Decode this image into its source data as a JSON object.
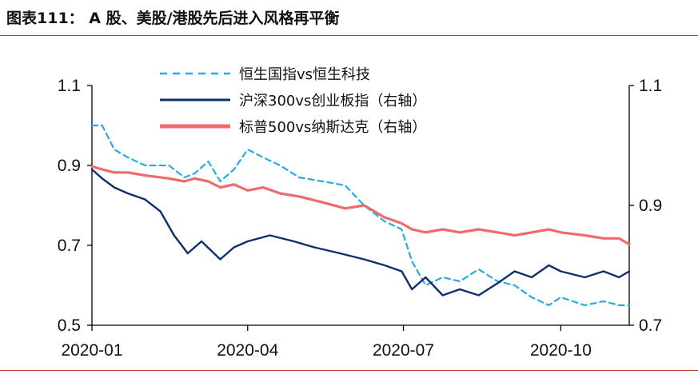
{
  "title": "图表111： A 股、美股/港股先后进入风格再平衡",
  "chart_data": {
    "type": "line",
    "x_tick_labels": [
      "2020-01",
      "2020-04",
      "2020-07",
      "2020-10"
    ],
    "x_ticks": [
      "2020-01-01",
      "2020-04-01",
      "2020-07-01",
      "2020-10-01"
    ],
    "x_range": [
      "2020-01-01",
      "2020-11-10"
    ],
    "y_left": {
      "range": [
        0.5,
        1.1
      ],
      "ticks": [
        "1.1",
        "0.9",
        "0.7",
        "0.5"
      ]
    },
    "y_right": {
      "range": [
        0.7,
        1.1
      ],
      "ticks": [
        "1.1",
        "0.9",
        "0.7"
      ]
    },
    "grid": false,
    "legend": "top",
    "series": [
      {
        "name": "恒生国指vs恒生科技",
        "axis": "left",
        "color": "#29abe2",
        "style": "dashed",
        "points": [
          [
            "2020-01-01",
            1.0
          ],
          [
            "2020-01-07",
            1.0
          ],
          [
            "2020-01-14",
            0.94
          ],
          [
            "2020-01-22",
            0.92
          ],
          [
            "2020-02-01",
            0.9
          ],
          [
            "2020-02-15",
            0.9
          ],
          [
            "2020-02-24",
            0.87
          ],
          [
            "2020-03-01",
            0.88
          ],
          [
            "2020-03-09",
            0.91
          ],
          [
            "2020-03-16",
            0.86
          ],
          [
            "2020-03-24",
            0.89
          ],
          [
            "2020-04-01",
            0.94
          ],
          [
            "2020-04-10",
            0.92
          ],
          [
            "2020-04-20",
            0.9
          ],
          [
            "2020-05-01",
            0.87
          ],
          [
            "2020-05-15",
            0.86
          ],
          [
            "2020-05-28",
            0.85
          ],
          [
            "2020-06-08",
            0.8
          ],
          [
            "2020-06-20",
            0.76
          ],
          [
            "2020-06-30",
            0.74
          ],
          [
            "2020-07-06",
            0.66
          ],
          [
            "2020-07-14",
            0.6
          ],
          [
            "2020-07-24",
            0.62
          ],
          [
            "2020-08-03",
            0.61
          ],
          [
            "2020-08-14",
            0.64
          ],
          [
            "2020-08-25",
            0.61
          ],
          [
            "2020-09-04",
            0.6
          ],
          [
            "2020-09-14",
            0.57
          ],
          [
            "2020-09-24",
            0.55
          ],
          [
            "2020-10-01",
            0.57
          ],
          [
            "2020-10-15",
            0.55
          ],
          [
            "2020-10-26",
            0.56
          ],
          [
            "2020-11-04",
            0.55
          ],
          [
            "2020-11-10",
            0.55
          ]
        ]
      },
      {
        "name": "沪深300vs创业板指（右轴）",
        "axis": "right",
        "color": "#0d2f6e",
        "style": "solid",
        "points": [
          [
            "2020-01-01",
            0.96
          ],
          [
            "2020-01-07",
            0.945
          ],
          [
            "2020-01-14",
            0.93
          ],
          [
            "2020-01-22",
            0.92
          ],
          [
            "2020-02-01",
            0.91
          ],
          [
            "2020-02-10",
            0.89
          ],
          [
            "2020-02-18",
            0.85
          ],
          [
            "2020-02-26",
            0.82
          ],
          [
            "2020-03-05",
            0.84
          ],
          [
            "2020-03-16",
            0.81
          ],
          [
            "2020-03-24",
            0.83
          ],
          [
            "2020-04-01",
            0.84
          ],
          [
            "2020-04-14",
            0.85
          ],
          [
            "2020-04-28",
            0.84
          ],
          [
            "2020-05-10",
            0.83
          ],
          [
            "2020-05-25",
            0.82
          ],
          [
            "2020-06-08",
            0.81
          ],
          [
            "2020-06-20",
            0.8
          ],
          [
            "2020-06-30",
            0.79
          ],
          [
            "2020-07-06",
            0.76
          ],
          [
            "2020-07-14",
            0.78
          ],
          [
            "2020-07-24",
            0.75
          ],
          [
            "2020-08-03",
            0.76
          ],
          [
            "2020-08-14",
            0.75
          ],
          [
            "2020-08-25",
            0.77
          ],
          [
            "2020-09-04",
            0.79
          ],
          [
            "2020-09-14",
            0.78
          ],
          [
            "2020-09-24",
            0.8
          ],
          [
            "2020-10-01",
            0.79
          ],
          [
            "2020-10-15",
            0.78
          ],
          [
            "2020-10-26",
            0.79
          ],
          [
            "2020-11-04",
            0.78
          ],
          [
            "2020-11-10",
            0.79
          ]
        ]
      },
      {
        "name": "标普500vs纳斯达克（右轴）",
        "axis": "right",
        "color": "#ef6b6b",
        "style": "solid",
        "points": [
          [
            "2020-01-01",
            0.965
          ],
          [
            "2020-01-07",
            0.96
          ],
          [
            "2020-01-14",
            0.955
          ],
          [
            "2020-01-22",
            0.955
          ],
          [
            "2020-02-01",
            0.95
          ],
          [
            "2020-02-15",
            0.945
          ],
          [
            "2020-02-24",
            0.94
          ],
          [
            "2020-03-01",
            0.945
          ],
          [
            "2020-03-09",
            0.94
          ],
          [
            "2020-03-16",
            0.93
          ],
          [
            "2020-03-24",
            0.935
          ],
          [
            "2020-04-01",
            0.925
          ],
          [
            "2020-04-10",
            0.93
          ],
          [
            "2020-04-20",
            0.92
          ],
          [
            "2020-05-01",
            0.915
          ],
          [
            "2020-05-15",
            0.905
          ],
          [
            "2020-05-28",
            0.895
          ],
          [
            "2020-06-08",
            0.9
          ],
          [
            "2020-06-20",
            0.88
          ],
          [
            "2020-06-30",
            0.87
          ],
          [
            "2020-07-06",
            0.86
          ],
          [
            "2020-07-14",
            0.855
          ],
          [
            "2020-07-24",
            0.86
          ],
          [
            "2020-08-03",
            0.855
          ],
          [
            "2020-08-14",
            0.86
          ],
          [
            "2020-08-25",
            0.855
          ],
          [
            "2020-09-04",
            0.85
          ],
          [
            "2020-09-14",
            0.855
          ],
          [
            "2020-09-24",
            0.86
          ],
          [
            "2020-10-01",
            0.855
          ],
          [
            "2020-10-15",
            0.85
          ],
          [
            "2020-10-26",
            0.845
          ],
          [
            "2020-11-04",
            0.845
          ],
          [
            "2020-11-10",
            0.835
          ]
        ]
      }
    ]
  }
}
